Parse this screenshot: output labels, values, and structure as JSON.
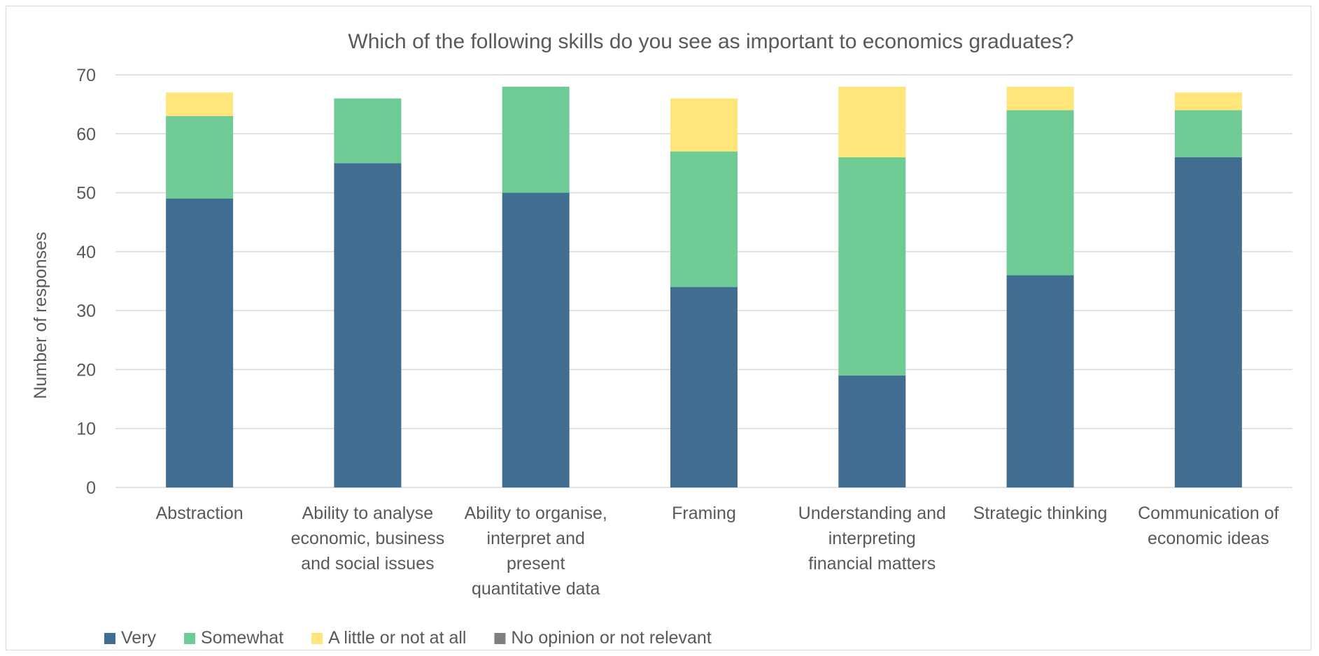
{
  "chart_data": {
    "type": "bar",
    "stacked": true,
    "title": "Which of the following skills do you see as important to economics graduates?",
    "xlabel": "",
    "ylabel": "Number of responses",
    "ylim": [
      0,
      70
    ],
    "yticks": [
      0,
      10,
      20,
      30,
      40,
      50,
      60,
      70
    ],
    "grid": true,
    "legend_position": "bottom-left",
    "categories": [
      [
        "Abstraction"
      ],
      [
        "Ability to analyse",
        "economic, business",
        "and social issues"
      ],
      [
        "Ability to organise,",
        "interpret and",
        "present",
        "quantitative data"
      ],
      [
        "Framing"
      ],
      [
        "Understanding and",
        "interpreting",
        "financial matters"
      ],
      [
        "Strategic thinking"
      ],
      [
        "Communication of",
        "economic ideas"
      ]
    ],
    "series": [
      {
        "name": "Very",
        "color": "#416d91",
        "values": [
          49,
          55,
          50,
          34,
          19,
          36,
          56
        ]
      },
      {
        "name": "Somewhat",
        "color": "#6fcb96",
        "values": [
          14,
          11,
          18,
          23,
          37,
          28,
          8
        ]
      },
      {
        "name": "A little or not at all",
        "color": "#ffe57a",
        "values": [
          4,
          0,
          0,
          9,
          12,
          4,
          3
        ]
      },
      {
        "name": "No opinion or not relevant",
        "color": "#7f7f7f",
        "values": [
          0,
          0,
          0,
          0,
          0,
          0,
          0
        ]
      }
    ]
  }
}
